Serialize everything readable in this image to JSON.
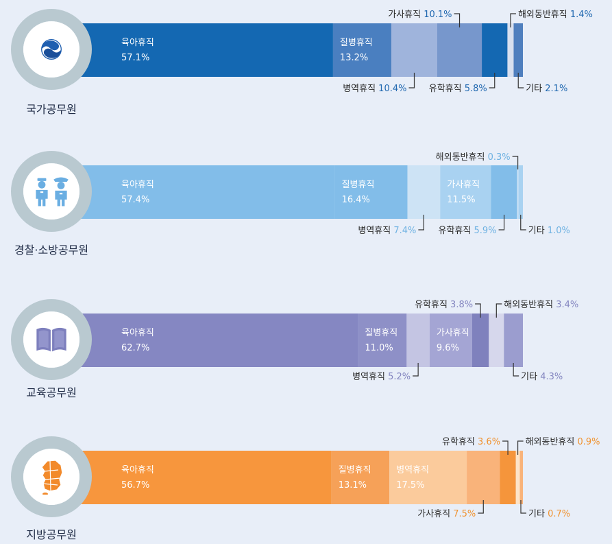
{
  "chart_data": [
    {
      "type": "bar",
      "title": "국가공무원",
      "icon": "government-emblem-icon",
      "unit": "%",
      "colors": {
        "accent": "#2068b0",
        "outside_pct": "#2068b0"
      },
      "segments": [
        {
          "name": "육아휴직",
          "value": 57.1,
          "display": "57.1%",
          "color": "#1468b2"
        },
        {
          "name": "질병휴직",
          "value": 13.2,
          "display": "13.2%",
          "color": "#4a7fc0"
        },
        {
          "name": "병역휴직",
          "value": 10.4,
          "display": "10.4%",
          "color": "#9fb4dc"
        },
        {
          "name": "가사휴직",
          "value": 10.1,
          "display": "10.1%",
          "color": "#7797cc"
        },
        {
          "name": "유학휴직",
          "value": 5.8,
          "display": "5.8%",
          "color": "#1468b2"
        },
        {
          "name": "해외동반휴직",
          "value": 1.4,
          "display": "1.4%",
          "color": "#d8e0ef"
        },
        {
          "name": "기타",
          "value": 2.1,
          "display": "2.1%",
          "color": "#4f7fbe"
        }
      ]
    },
    {
      "type": "bar",
      "title": "경찰·소방공무원",
      "icon": "police-firefighter-icon",
      "unit": "%",
      "colors": {
        "accent": "#7cb8e6",
        "outside_pct": "#6fb2e2"
      },
      "segments": [
        {
          "name": "육아휴직",
          "value": 57.4,
          "display": "57.4%",
          "color": "#82bde9"
        },
        {
          "name": "질병휴직",
          "value": 16.4,
          "display": "16.4%",
          "color": "#82bde9"
        },
        {
          "name": "병역휴직",
          "value": 7.4,
          "display": "7.4%",
          "color": "#cde3f5"
        },
        {
          "name": "가사휴직",
          "value": 11.5,
          "display": "11.5%",
          "color": "#a9d2f1"
        },
        {
          "name": "유학휴직",
          "value": 5.9,
          "display": "5.9%",
          "color": "#82bde9"
        },
        {
          "name": "해외동반휴직",
          "value": 0.3,
          "display": "0.3%",
          "color": "#cde3f5"
        },
        {
          "name": "기타",
          "value": 1.0,
          "display": "1.0%",
          "color": "#a9d2f1"
        }
      ]
    },
    {
      "type": "bar",
      "title": "교육공무원",
      "icon": "book-icon",
      "unit": "%",
      "colors": {
        "accent": "#8587c2",
        "outside_pct": "#8486c0"
      },
      "segments": [
        {
          "name": "육아휴직",
          "value": 62.7,
          "display": "62.7%",
          "color": "#8587c2"
        },
        {
          "name": "질병휴직",
          "value": 11.0,
          "display": "11.0%",
          "color": "#8e90c7"
        },
        {
          "name": "병역휴직",
          "value": 5.2,
          "display": "5.2%",
          "color": "#c4c5e3"
        },
        {
          "name": "가사휴직",
          "value": 9.6,
          "display": "9.6%",
          "color": "#a4a5d4"
        },
        {
          "name": "유학휴직",
          "value": 3.8,
          "display": "3.8%",
          "color": "#7f81bd"
        },
        {
          "name": "해외동반휴직",
          "value": 3.4,
          "display": "3.4%",
          "color": "#d6d7ec"
        },
        {
          "name": "기타",
          "value": 4.3,
          "display": "4.3%",
          "color": "#9b9dcf"
        }
      ]
    },
    {
      "type": "bar",
      "title": "지방공무원",
      "icon": "korea-map-icon",
      "unit": "%",
      "colors": {
        "accent": "#f5953b",
        "outside_pct": "#f0922f"
      },
      "segments": [
        {
          "name": "육아휴직",
          "value": 56.7,
          "display": "56.7%",
          "color": "#f7963d"
        },
        {
          "name": "질병휴직",
          "value": 13.1,
          "display": "13.1%",
          "color": "#f6a158"
        },
        {
          "name": "병역휴직",
          "value": 17.5,
          "display": "17.5%",
          "color": "#fbcb9c"
        },
        {
          "name": "가사휴직",
          "value": 7.5,
          "display": "7.5%",
          "color": "#f9b37a"
        },
        {
          "name": "유학휴직",
          "value": 3.6,
          "display": "3.6%",
          "color": "#f5953b"
        },
        {
          "name": "해외동반휴직",
          "value": 0.9,
          "display": "0.9%",
          "color": "#fde4c8"
        },
        {
          "name": "기타",
          "value": 0.7,
          "display": "0.7%",
          "color": "#f9b37a"
        }
      ]
    }
  ]
}
